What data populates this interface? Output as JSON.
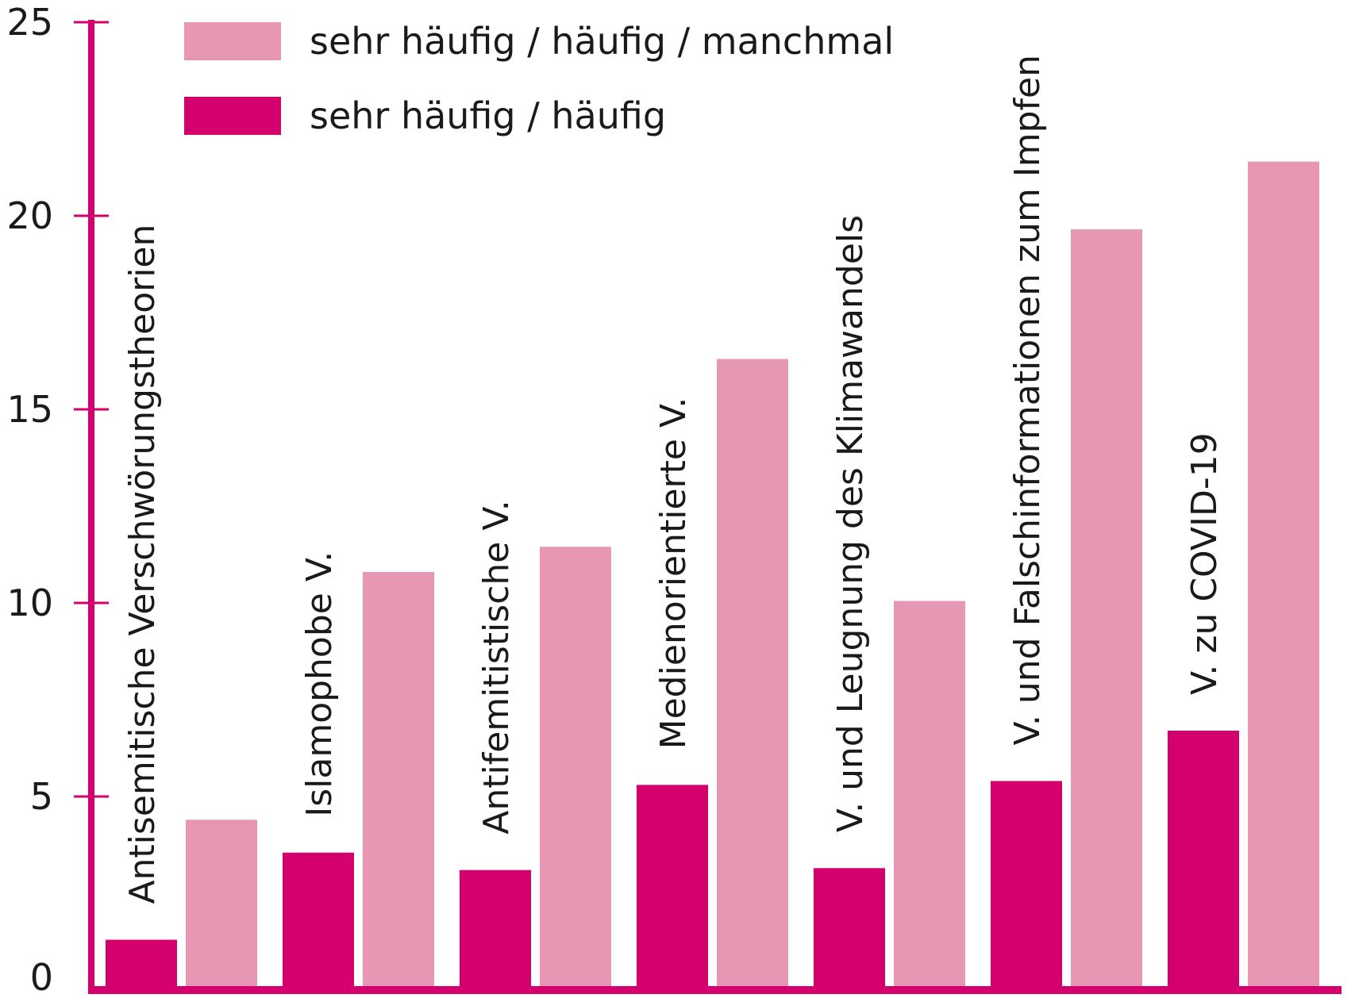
{
  "chart_data": {
    "type": "bar",
    "title": "",
    "xlabel": "",
    "ylabel": "",
    "ylim": [
      0,
      25
    ],
    "yticks": [
      "0",
      "5",
      "10",
      "15",
      "20",
      "25"
    ],
    "grid": false,
    "legend_position": "top-left",
    "categories": [
      "Antisemitische Verschwörungstheorien",
      "Islamophobe V.",
      "Antifemitistische V.",
      "Medienorientierte V.",
      "V. und Leugnung des Klimawandels",
      "V. und Falschinformationen zum Impfen",
      "V. zu COVID-19"
    ],
    "series": [
      {
        "name": "sehr häufig / häufig",
        "color": "#d4006e",
        "values": [
          1.3,
          3.55,
          3.1,
          5.3,
          3.15,
          5.4,
          6.7
        ]
      },
      {
        "name": "sehr häufig / häufig / manchmal",
        "color": "#e797b4",
        "values": [
          4.4,
          10.8,
          11.45,
          16.3,
          10.05,
          19.65,
          21.4
        ]
      }
    ],
    "axis_color": "#d4006e"
  }
}
